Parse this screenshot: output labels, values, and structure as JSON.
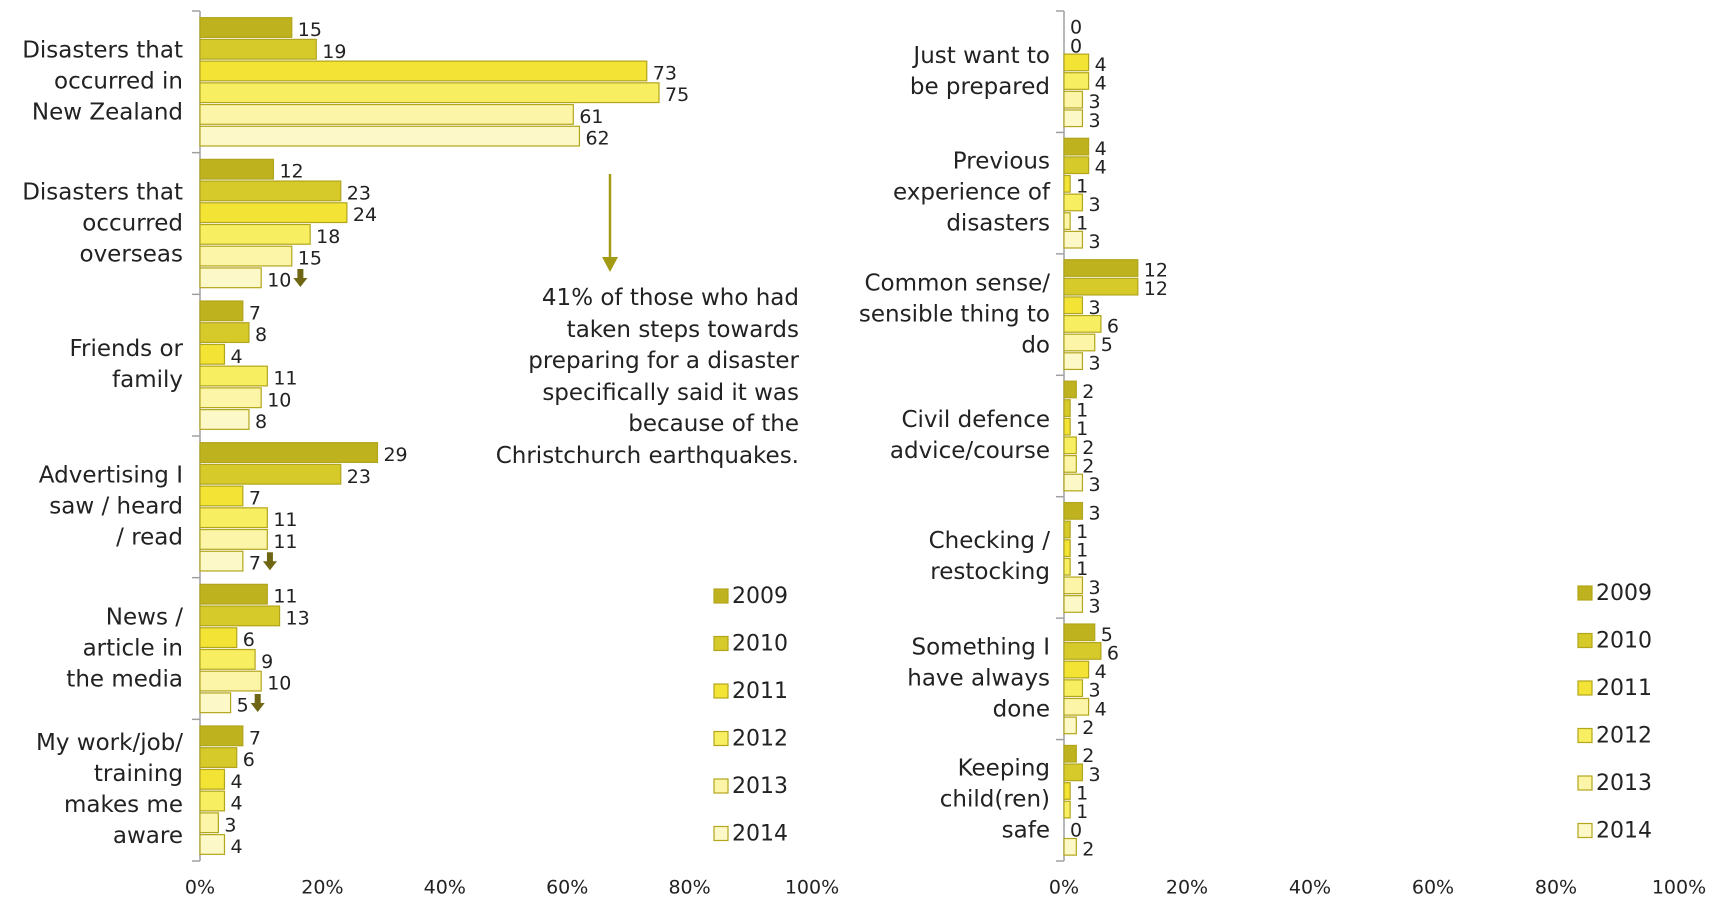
{
  "chart_data": [
    {
      "type": "bar",
      "orientation": "horizontal",
      "categories": [
        "Disasters that\noccurred in\nNew Zealand",
        "Disasters that\noccurred\noverseas",
        "Friends or\nfamily",
        "Advertising I\nsaw / heard\n/ read",
        "News /\narticle in\nthe media",
        "My work/job/\ntraining\nmakes me\naware"
      ],
      "series": [
        {
          "name": "2009",
          "color": "#beb21f",
          "values": [
            15,
            12,
            7,
            29,
            11,
            7
          ]
        },
        {
          "name": "2010",
          "color": "#d6c92a",
          "values": [
            19,
            23,
            8,
            23,
            13,
            6
          ]
        },
        {
          "name": "2011",
          "color": "#f3e335",
          "values": [
            73,
            24,
            4,
            7,
            6,
            4
          ]
        },
        {
          "name": "2012",
          "color": "#f8ee62",
          "values": [
            75,
            18,
            11,
            11,
            9,
            4
          ]
        },
        {
          "name": "2013",
          "color": "#fcf5a8",
          "values": [
            61,
            15,
            10,
            11,
            10,
            3
          ]
        },
        {
          "name": "2014",
          "color": "#fdf8c8",
          "values": [
            62,
            10,
            8,
            7,
            5,
            4
          ],
          "markers": [
            null,
            "down",
            null,
            "down",
            "down",
            null
          ]
        }
      ],
      "xlim": [
        0,
        100
      ],
      "xticks": [
        {
          "value": 0,
          "label": "0%"
        },
        {
          "value": 20,
          "label": "20%"
        },
        {
          "value": 40,
          "label": "40%"
        },
        {
          "value": 60,
          "label": "60%"
        },
        {
          "value": 80,
          "label": "80%"
        },
        {
          "value": 100,
          "label": "100%"
        }
      ],
      "legend": "right",
      "annotation": "41% of those who had\ntaken steps towards\npreparing for a disaster\nspecifically said it was\nbecause of the\nChristchurch earthquakes."
    },
    {
      "type": "bar",
      "orientation": "horizontal",
      "categories": [
        "Just want to\nbe prepared",
        "Previous\nexperience of\ndisasters",
        "Common sense/\nsensible thing to\ndo",
        "Civil defence\nadvice/course",
        "Checking /\nrestocking",
        "Something I\nhave always\ndone",
        "Keeping\nchild(ren)\nsafe"
      ],
      "series": [
        {
          "name": "2009",
          "color": "#beb21f",
          "values": [
            0,
            4,
            12,
            2,
            3,
            5,
            2
          ]
        },
        {
          "name": "2010",
          "color": "#d6c92a",
          "values": [
            0,
            4,
            12,
            1,
            1,
            6,
            3
          ]
        },
        {
          "name": "2011",
          "color": "#f3e335",
          "values": [
            4,
            1,
            3,
            1,
            1,
            4,
            1
          ]
        },
        {
          "name": "2012",
          "color": "#f8ee62",
          "values": [
            4,
            3,
            6,
            2,
            1,
            3,
            1
          ]
        },
        {
          "name": "2013",
          "color": "#fcf5a8",
          "values": [
            3,
            1,
            5,
            2,
            3,
            4,
            0
          ]
        },
        {
          "name": "2014",
          "color": "#fdf8c8",
          "values": [
            3,
            3,
            3,
            3,
            3,
            2,
            2
          ]
        }
      ],
      "xlim": [
        0,
        100
      ],
      "xticks": [
        {
          "value": 0,
          "label": "0%"
        },
        {
          "value": 20,
          "label": "20%"
        },
        {
          "value": 40,
          "label": "40%"
        },
        {
          "value": 60,
          "label": "60%"
        },
        {
          "value": 80,
          "label": "80%"
        },
        {
          "value": 100,
          "label": "100%"
        }
      ],
      "legend": "right"
    }
  ]
}
